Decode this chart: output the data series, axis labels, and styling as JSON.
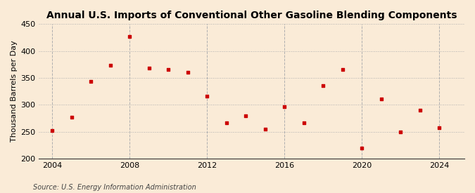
{
  "title": "Annual U.S. Imports of Conventional Other Gasoline Blending Components",
  "ylabel": "Thousand Barrels per Day",
  "source": "Source: U.S. Energy Information Administration",
  "background_color": "#faebd7",
  "marker_color": "#cc0000",
  "years": [
    2004,
    2005,
    2006,
    2007,
    2008,
    2009,
    2010,
    2011,
    2012,
    2013,
    2014,
    2015,
    2016,
    2017,
    2018,
    2019,
    2020,
    2021,
    2022,
    2023,
    2024
  ],
  "values": [
    252,
    277,
    343,
    373,
    427,
    368,
    365,
    361,
    316,
    266,
    279,
    255,
    296,
    266,
    335,
    365,
    220,
    311,
    250,
    290,
    257
  ],
  "ylim": [
    200,
    450
  ],
  "yticks": [
    200,
    250,
    300,
    350,
    400,
    450
  ],
  "xticks": [
    2004,
    2008,
    2012,
    2016,
    2020,
    2024
  ],
  "xlim": [
    2003.3,
    2025.3
  ],
  "grid_color": "#b0b0b0",
  "title_fontsize": 10,
  "label_fontsize": 8,
  "tick_fontsize": 8,
  "source_fontsize": 7
}
